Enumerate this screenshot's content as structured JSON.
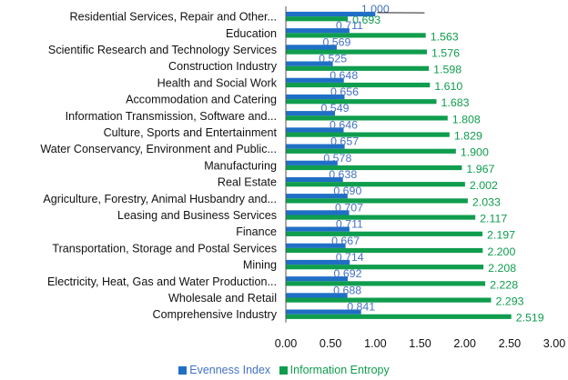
{
  "chart_data": {
    "type": "bar",
    "orientation": "horizontal",
    "categories": [
      "Residential Services, Repair and Other...",
      "Education",
      "Scientific Research and Technology Services",
      "Construction Industry",
      "Health and Social Work",
      "Accommodation and Catering",
      "Information Transmission, Software and...",
      "Culture, Sports and Entertainment",
      "Water Conservancy, Environment and Public...",
      "Manufacturing",
      "Real Estate",
      "Agriculture, Forestry, Animal Husbandry and...",
      "Leasing and Business Services",
      "Finance",
      "Transportation, Storage and Postal Services",
      "Mining",
      "Electricity, Heat, Gas and Water Production...",
      "Wholesale and Retail",
      "Comprehensive Industry"
    ],
    "series": [
      {
        "name": "Evenness Index",
        "color": "#1f6fc6",
        "label_color": "#4472c4",
        "values": [
          1.0,
          0.711,
          0.569,
          0.525,
          0.648,
          0.656,
          0.549,
          0.646,
          0.657,
          0.578,
          0.638,
          0.69,
          0.707,
          0.711,
          0.667,
          0.714,
          0.692,
          0.688,
          0.841
        ],
        "labels": [
          "1.000",
          "0.711",
          "0.569",
          "0.525",
          "0.648",
          "0.656",
          "0.549",
          "0.646",
          "0.657",
          "0.578",
          "0.638",
          "0.690",
          "0.707",
          "0.711",
          "0.667",
          "0.714",
          "0.692",
          "0.688",
          "0.841"
        ]
      },
      {
        "name": "Information Entropy",
        "color": "#0f9d4e",
        "label_color": "#0f9d4e",
        "values": [
          0.693,
          1.563,
          1.576,
          1.598,
          1.61,
          1.683,
          1.808,
          1.829,
          1.9,
          1.967,
          2.002,
          2.033,
          2.117,
          2.197,
          2.2,
          2.208,
          2.228,
          2.293,
          2.519
        ],
        "labels": [
          "0.693",
          "1.563",
          "1.576",
          "1.598",
          "1.610",
          "1.683",
          "1.808",
          "1.829",
          "1.900",
          "1.967",
          "2.002",
          "2.033",
          "2.117",
          "2.197",
          "2.200",
          "2.208",
          "2.228",
          "2.293",
          "2.519"
        ]
      }
    ],
    "x_ticks": [
      0,
      0.5,
      1,
      1.5,
      2,
      2.5,
      3
    ],
    "x_tick_labels": [
      "0.00",
      "0.50",
      "1.00",
      "1.50",
      "2.00",
      "2.50",
      "3.00"
    ],
    "xlim": [
      0,
      3
    ],
    "title": "",
    "xlabel": "",
    "ylabel": "",
    "grid": false,
    "legend_position": "bottom"
  }
}
